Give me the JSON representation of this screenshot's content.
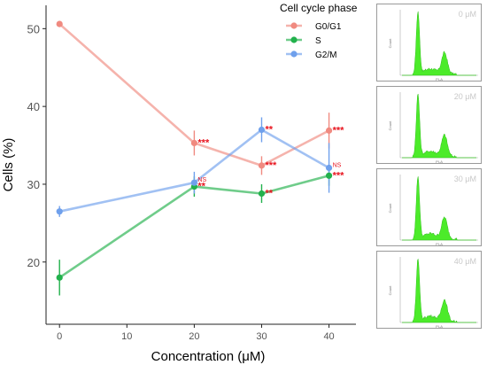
{
  "chart_data": [
    {
      "type": "line",
      "xlabel": "Concentration (μM)",
      "ylabel": "Cells (%)",
      "x": [
        0,
        20,
        30,
        40
      ],
      "xlim": [
        -2,
        44
      ],
      "ylim": [
        12,
        53
      ],
      "xticks": [
        "0",
        "10",
        "20",
        "30",
        "40"
      ],
      "xtick_values": [
        0,
        10,
        20,
        30,
        40
      ],
      "yticks": [
        "20",
        "30",
        "40",
        "50"
      ],
      "ytick_values": [
        20,
        30,
        40,
        50
      ],
      "grid": false,
      "legend": {
        "title": "Cell cycle phase",
        "position": "top-right"
      },
      "series": [
        {
          "name": "G0/G1",
          "color": "#F08A80",
          "values": [
            50.6,
            35.3,
            32.4,
            36.9
          ],
          "errors": [
            0.4,
            1.6,
            1.2,
            2.3
          ],
          "significance": [
            "",
            "***",
            "***",
            "***"
          ]
        },
        {
          "name": "S",
          "color": "#22B14C",
          "values": [
            18.0,
            29.7,
            28.8,
            31.1
          ],
          "errors": [
            2.3,
            1.3,
            1.2,
            1.3
          ],
          "significance": [
            "",
            "**",
            "**",
            "***"
          ]
        },
        {
          "name": "G2/M",
          "color": "#6FA0EC",
          "values": [
            26.5,
            30.2,
            37.0,
            32.1
          ],
          "errors": [
            0.7,
            1.4,
            1.6,
            3.2
          ],
          "significance": [
            "",
            "NS",
            "**",
            "NS"
          ]
        }
      ]
    },
    {
      "type": "area",
      "panels": [
        {
          "label": "0 μM"
        },
        {
          "label": "20 μM"
        },
        {
          "label": "30 μM"
        },
        {
          "label": "40 μM"
        }
      ],
      "xlabel": "PI-A",
      "ylabel": "Count",
      "fill_color": "#4CEB2A"
    }
  ]
}
